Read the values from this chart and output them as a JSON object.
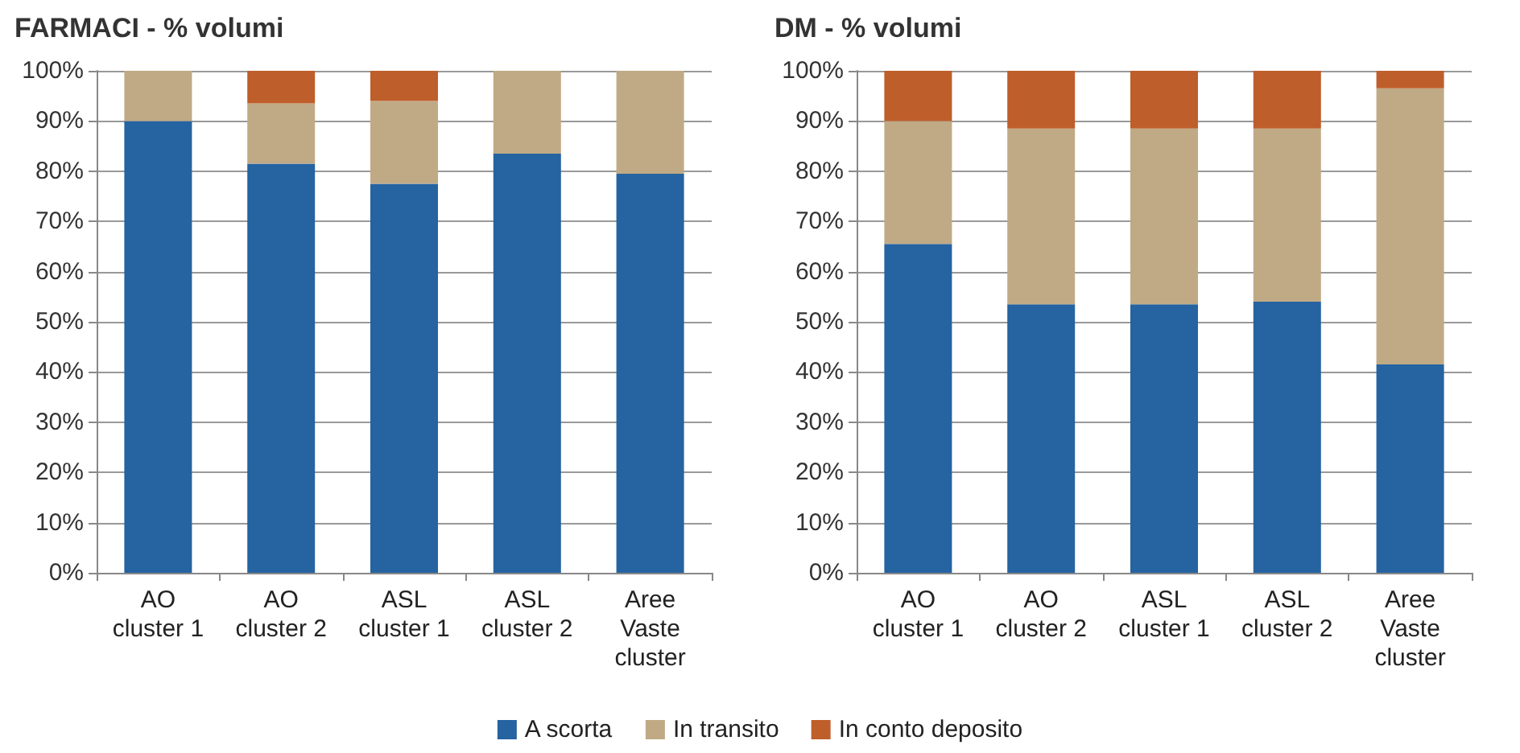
{
  "chart_data": [
    {
      "type": "bar",
      "title": "FARMACI - % volumi",
      "stacked": true,
      "categories": [
        "AO\ncluster 1",
        "AO\ncluster 2",
        "ASL\ncluster 1",
        "ASL\ncluster 2",
        "Aree\nVaste\ncluster"
      ],
      "series": [
        {
          "name": "A scorta",
          "color": "#2563a1",
          "values": [
            90,
            81.5,
            77.5,
            83.5,
            79.5
          ]
        },
        {
          "name": "In transito",
          "color": "#c0aa85",
          "values": [
            10,
            12,
            16.5,
            16.5,
            20.5
          ]
        },
        {
          "name": "In conto deposito",
          "color": "#be5e2b",
          "values": [
            0,
            6.5,
            6,
            0,
            0
          ]
        }
      ],
      "ylim": [
        0,
        100
      ],
      "yticks": [
        {
          "value": 0,
          "label": "0%"
        },
        {
          "value": 10,
          "label": "10%"
        },
        {
          "value": 20,
          "label": "20%"
        },
        {
          "value": 30,
          "label": "30%"
        },
        {
          "value": 40,
          "label": "40%"
        },
        {
          "value": 50,
          "label": "50%"
        },
        {
          "value": 60,
          "label": "60%"
        },
        {
          "value": 70,
          "label": "70%"
        },
        {
          "value": 80,
          "label": "80%"
        },
        {
          "value": 90,
          "label": "90%"
        },
        {
          "value": 100,
          "label": "100%"
        }
      ],
      "grid": "y",
      "legend": "bottom"
    },
    {
      "type": "bar",
      "title": "DM - % volumi",
      "stacked": true,
      "categories": [
        "AO\ncluster 1",
        "AO\ncluster 2",
        "ASL\ncluster 1",
        "ASL\ncluster 2",
        "Aree\nVaste\ncluster"
      ],
      "series": [
        {
          "color": "#2563a1",
          "values": [
            65.5,
            53.5,
            53.5,
            54,
            41.5
          ]
        },
        {
          "color": "#c0aa85",
          "values": [
            24.5,
            35,
            35,
            34.5,
            55
          ]
        },
        {
          "color": "#be5e2b",
          "values": [
            10,
            11.5,
            11.5,
            11.5,
            3.5
          ]
        }
      ],
      "ylim": [
        0,
        100
      ],
      "yticks": [
        {
          "value": 0,
          "label": "0%"
        },
        {
          "value": 10,
          "label": "10%"
        },
        {
          "value": 20,
          "label": "20%"
        },
        {
          "value": 30,
          "label": "30%"
        },
        {
          "value": 40,
          "label": "40%"
        },
        {
          "value": 50,
          "label": "50%"
        },
        {
          "value": 60,
          "label": "60%"
        },
        {
          "value": 70,
          "label": "70%"
        },
        {
          "value": 80,
          "label": "80%"
        },
        {
          "value": 90,
          "label": "90%"
        },
        {
          "value": 100,
          "label": "100%"
        }
      ],
      "grid": "y"
    }
  ]
}
